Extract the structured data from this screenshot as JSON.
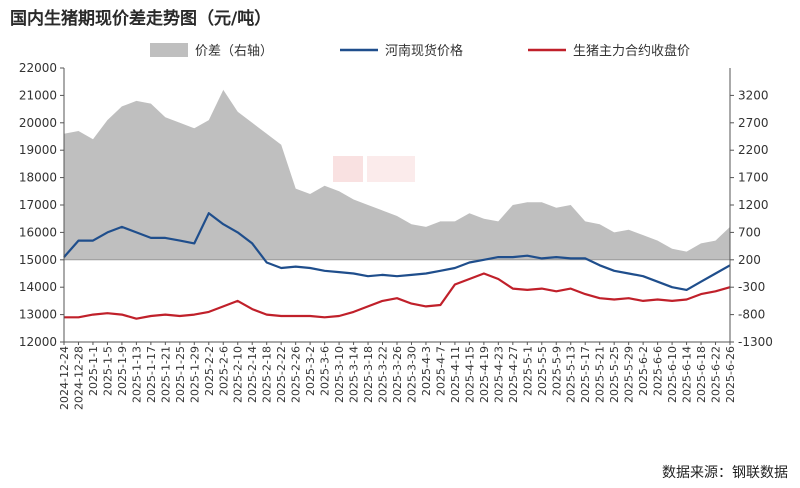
{
  "page_title": "国内生猪期现价差走势图（元/吨）",
  "source_note": "数据来源：钢联数据",
  "chart_data": {
    "type": "line",
    "title": "国内生猪期现价差走势图（元/吨）",
    "left_axis": {
      "min": 12000,
      "max": 22000,
      "ticks": [
        "12000",
        "13000",
        "14000",
        "15000",
        "16000",
        "17000",
        "18000",
        "19000",
        "20000",
        "21000",
        "22000"
      ]
    },
    "right_axis": {
      "min": -1300,
      "max": 3700,
      "ticks": [
        "-1300",
        "-800",
        "-300",
        "200",
        "700",
        "1200",
        "1700",
        "2200",
        "2700",
        "3200"
      ]
    },
    "x_labels": [
      "2024-12-24",
      "2024-12-28",
      "2025-1-1",
      "2025-1-5",
      "2025-1-9",
      "2025-1-13",
      "2025-1-17",
      "2025-1-21",
      "2025-1-25",
      "2025-1-29",
      "2025-2-2",
      "2025-2-6",
      "2025-2-10",
      "2025-2-14",
      "2025-2-18",
      "2025-2-22",
      "2025-2-26",
      "2025-3-2",
      "2025-3-6",
      "2025-3-10",
      "2025-3-14",
      "2025-3-18",
      "2025-3-22",
      "2025-3-26",
      "2025-3-30",
      "2025-4-3",
      "2025-4-7",
      "2025-4-11",
      "2025-4-15",
      "2025-4-19",
      "2025-4-23",
      "2025-4-27",
      "2025-5-1",
      "2025-5-5",
      "2025-5-9",
      "2025-5-13",
      "2025-5-17",
      "2025-5-21",
      "2025-5-25",
      "2025-5-29",
      "2025-6-2",
      "2025-6-6",
      "2025-6-10",
      "2025-6-14",
      "2025-6-18",
      "2025-6-22",
      "2025-6-26"
    ],
    "legend_position": "top",
    "series": [
      {
        "name": "价差（右轴）",
        "kind": "area",
        "axis": "right",
        "color": "#bfbfbf",
        "values": [
          2500,
          2550,
          2400,
          2750,
          3000,
          3100,
          3050,
          2800,
          2700,
          2600,
          2750,
          3300,
          2900,
          2700,
          2500,
          2300,
          1500,
          1400,
          1550,
          1450,
          1300,
          1200,
          1100,
          1000,
          850,
          800,
          900,
          900,
          1050,
          950,
          900,
          1200,
          1250,
          1250,
          1150,
          1200,
          900,
          850,
          700,
          750,
          650,
          550,
          400,
          350,
          500,
          550,
          800
        ]
      },
      {
        "name": "河南现货价格",
        "kind": "line",
        "axis": "left",
        "color": "#1f4e8c",
        "values": [
          15100,
          15700,
          15700,
          16000,
          16200,
          16000,
          15800,
          15800,
          15700,
          15600,
          16700,
          16300,
          16000,
          15600,
          14900,
          14700,
          14750,
          14700,
          14600,
          14550,
          14500,
          14400,
          14450,
          14400,
          14450,
          14500,
          14600,
          14700,
          14900,
          15000,
          15100,
          15100,
          15150,
          15050,
          15100,
          15050,
          15050,
          14800,
          14600,
          14500,
          14400,
          14200,
          14000,
          13900,
          14200,
          14500,
          14800
        ]
      },
      {
        "name": "生猪主力合约收盘价",
        "kind": "line",
        "axis": "left",
        "color": "#c0202a",
        "values": [
          12900,
          12900,
          13000,
          13050,
          13000,
          12850,
          12950,
          13000,
          12950,
          13000,
          13100,
          13300,
          13500,
          13200,
          13000,
          12950,
          12950,
          12950,
          12900,
          12950,
          13100,
          13300,
          13500,
          13600,
          13400,
          13300,
          13350,
          14100,
          14300,
          14500,
          14300,
          13950,
          13900,
          13950,
          13850,
          13950,
          13750,
          13600,
          13550,
          13600,
          13500,
          13550,
          13500,
          13550,
          13750,
          13850,
          14000
        ]
      }
    ]
  }
}
